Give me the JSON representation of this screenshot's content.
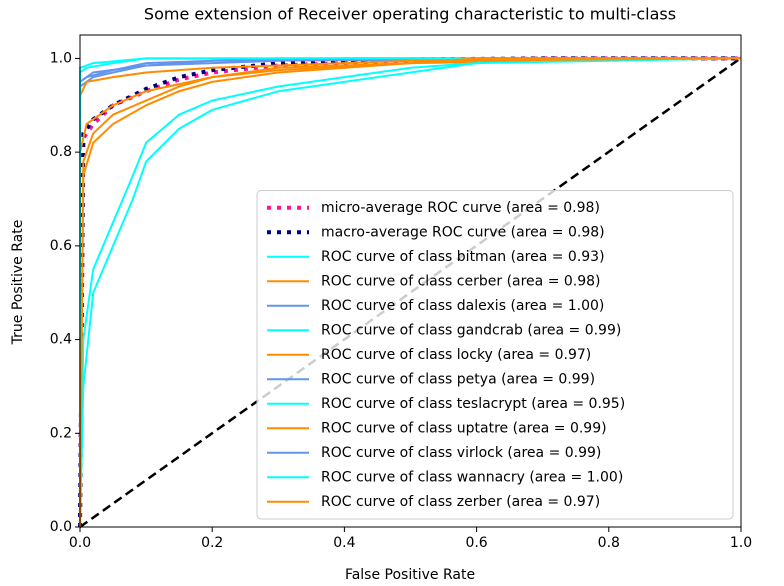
{
  "chart_data": {
    "type": "line",
    "title": "Some extension of Receiver operating characteristic to multi-class",
    "xlabel": "False Positive Rate",
    "ylabel": "True Positive Rate",
    "xlim": [
      0,
      1
    ],
    "ylim": [
      0,
      1.05
    ],
    "xticks": [
      {
        "value": 0,
        "label": "0.0"
      },
      0.2,
      0.4,
      0.6,
      0.8,
      {
        "value": 1,
        "label": "1.0"
      }
    ],
    "yticks": [
      {
        "value": 0,
        "label": "0.0"
      },
      0.2,
      0.4,
      0.6,
      0.8,
      {
        "value": 1,
        "label": "1.0"
      }
    ],
    "grid": false,
    "legend": "lower right",
    "series": [
      {
        "name": "micro-average ROC curve (area = 0.98)",
        "color": "#ff1493",
        "linestyle": "dotted",
        "linewidth": 4,
        "x": [
          0,
          0.005,
          0.02,
          0.05,
          0.1,
          0.15,
          0.2,
          0.3,
          0.5,
          0.7,
          1
        ],
        "values": [
          0,
          0.83,
          0.86,
          0.9,
          0.93,
          0.955,
          0.97,
          0.985,
          0.995,
          1,
          1
        ]
      },
      {
        "name": "macro-average ROC curve (area = 0.98)",
        "color": "#000080",
        "linestyle": "dotted",
        "linewidth": 4,
        "x": [
          0,
          0.005,
          0.02,
          0.05,
          0.1,
          0.15,
          0.2,
          0.3,
          0.5,
          0.7,
          1
        ],
        "values": [
          0,
          0.84,
          0.87,
          0.9,
          0.935,
          0.96,
          0.975,
          0.99,
          0.998,
          1,
          1
        ]
      },
      {
        "name": "ROC curve of class bitman (area = 0.93)",
        "color": "#00ffff",
        "linestyle": "solid",
        "linewidth": 2,
        "x": [
          0,
          0.005,
          0.02,
          0.05,
          0.08,
          0.1,
          0.15,
          0.2,
          0.3,
          0.4,
          0.5,
          0.6,
          0.7,
          1
        ],
        "values": [
          0,
          0.3,
          0.5,
          0.6,
          0.7,
          0.78,
          0.85,
          0.89,
          0.93,
          0.95,
          0.97,
          0.99,
          1,
          1
        ]
      },
      {
        "name": "ROC curve of class cerber (area = 0.98)",
        "color": "#ff8c00",
        "linestyle": "solid",
        "linewidth": 2,
        "x": [
          0,
          0,
          0.01,
          0.05,
          0.1,
          0.2,
          0.3,
          0.5,
          1
        ],
        "values": [
          0,
          0.8,
          0.86,
          0.9,
          0.93,
          0.96,
          0.98,
          0.99,
          1
        ]
      },
      {
        "name": "ROC curve of class dalexis (area = 1.00)",
        "color": "#6495ed",
        "linestyle": "solid",
        "linewidth": 2,
        "x": [
          0,
          0,
          0.02,
          0.1,
          0.2,
          1
        ],
        "values": [
          0,
          0.95,
          0.97,
          0.985,
          0.995,
          1
        ]
      },
      {
        "name": "ROC curve of class gandcrab (area = 0.99)",
        "color": "#00ffff",
        "linestyle": "solid",
        "linewidth": 2,
        "x": [
          0,
          0,
          0.01,
          0.05,
          0.1,
          1
        ],
        "values": [
          0,
          0.97,
          0.98,
          0.99,
          1,
          1
        ]
      },
      {
        "name": "ROC curve of class locky (area = 0.97)",
        "color": "#ff8c00",
        "linestyle": "solid",
        "linewidth": 2,
        "x": [
          0,
          0.005,
          0.02,
          0.05,
          0.1,
          0.15,
          0.2,
          0.3,
          0.5,
          0.6,
          1
        ],
        "values": [
          0,
          0.75,
          0.82,
          0.86,
          0.9,
          0.93,
          0.95,
          0.97,
          0.99,
          1,
          1
        ]
      },
      {
        "name": "ROC curve of class petya (area = 0.99)",
        "color": "#6495ed",
        "linestyle": "solid",
        "linewidth": 2,
        "x": [
          0,
          0,
          0.02,
          0.05,
          0.1,
          0.2,
          0.4,
          1
        ],
        "values": [
          0,
          0.94,
          0.96,
          0.97,
          0.985,
          0.99,
          1,
          1
        ]
      },
      {
        "name": "ROC curve of class teslacrypt (area = 0.95)",
        "color": "#00ffff",
        "linestyle": "solid",
        "linewidth": 2,
        "x": [
          0,
          0.005,
          0.02,
          0.05,
          0.08,
          0.1,
          0.15,
          0.2,
          0.3,
          0.4,
          0.5,
          0.6,
          1
        ],
        "values": [
          0,
          0.4,
          0.55,
          0.65,
          0.75,
          0.82,
          0.88,
          0.91,
          0.94,
          0.96,
          0.98,
          0.99,
          1
        ]
      },
      {
        "name": "ROC curve of class uptatre (area = 0.99)",
        "color": "#ff8c00",
        "linestyle": "solid",
        "linewidth": 2,
        "x": [
          0,
          0,
          0.01,
          0.05,
          0.1,
          0.2,
          0.5,
          1
        ],
        "values": [
          0,
          0.92,
          0.95,
          0.96,
          0.97,
          0.98,
          0.995,
          1
        ]
      },
      {
        "name": "ROC curve of class virlock (area = 0.99)",
        "color": "#6495ed",
        "linestyle": "solid",
        "linewidth": 2,
        "x": [
          0,
          0,
          0.01,
          0.05,
          0.1,
          0.3,
          1
        ],
        "values": [
          0,
          0.95,
          0.96,
          0.975,
          0.99,
          1,
          1
        ]
      },
      {
        "name": "ROC curve of class wannacry (area = 1.00)",
        "color": "#00ffff",
        "linestyle": "solid",
        "linewidth": 2,
        "x": [
          0,
          0,
          0.02,
          0.1,
          1
        ],
        "values": [
          0,
          0.98,
          0.99,
          1,
          1
        ]
      },
      {
        "name": "ROC curve of class zerber (area = 0.97)",
        "color": "#ff8c00",
        "linestyle": "solid",
        "linewidth": 2,
        "x": [
          0,
          0.005,
          0.02,
          0.05,
          0.1,
          0.15,
          0.2,
          0.3,
          0.5,
          0.6,
          1
        ],
        "values": [
          0,
          0.78,
          0.84,
          0.88,
          0.91,
          0.94,
          0.96,
          0.975,
          0.99,
          1,
          1
        ]
      }
    ]
  }
}
